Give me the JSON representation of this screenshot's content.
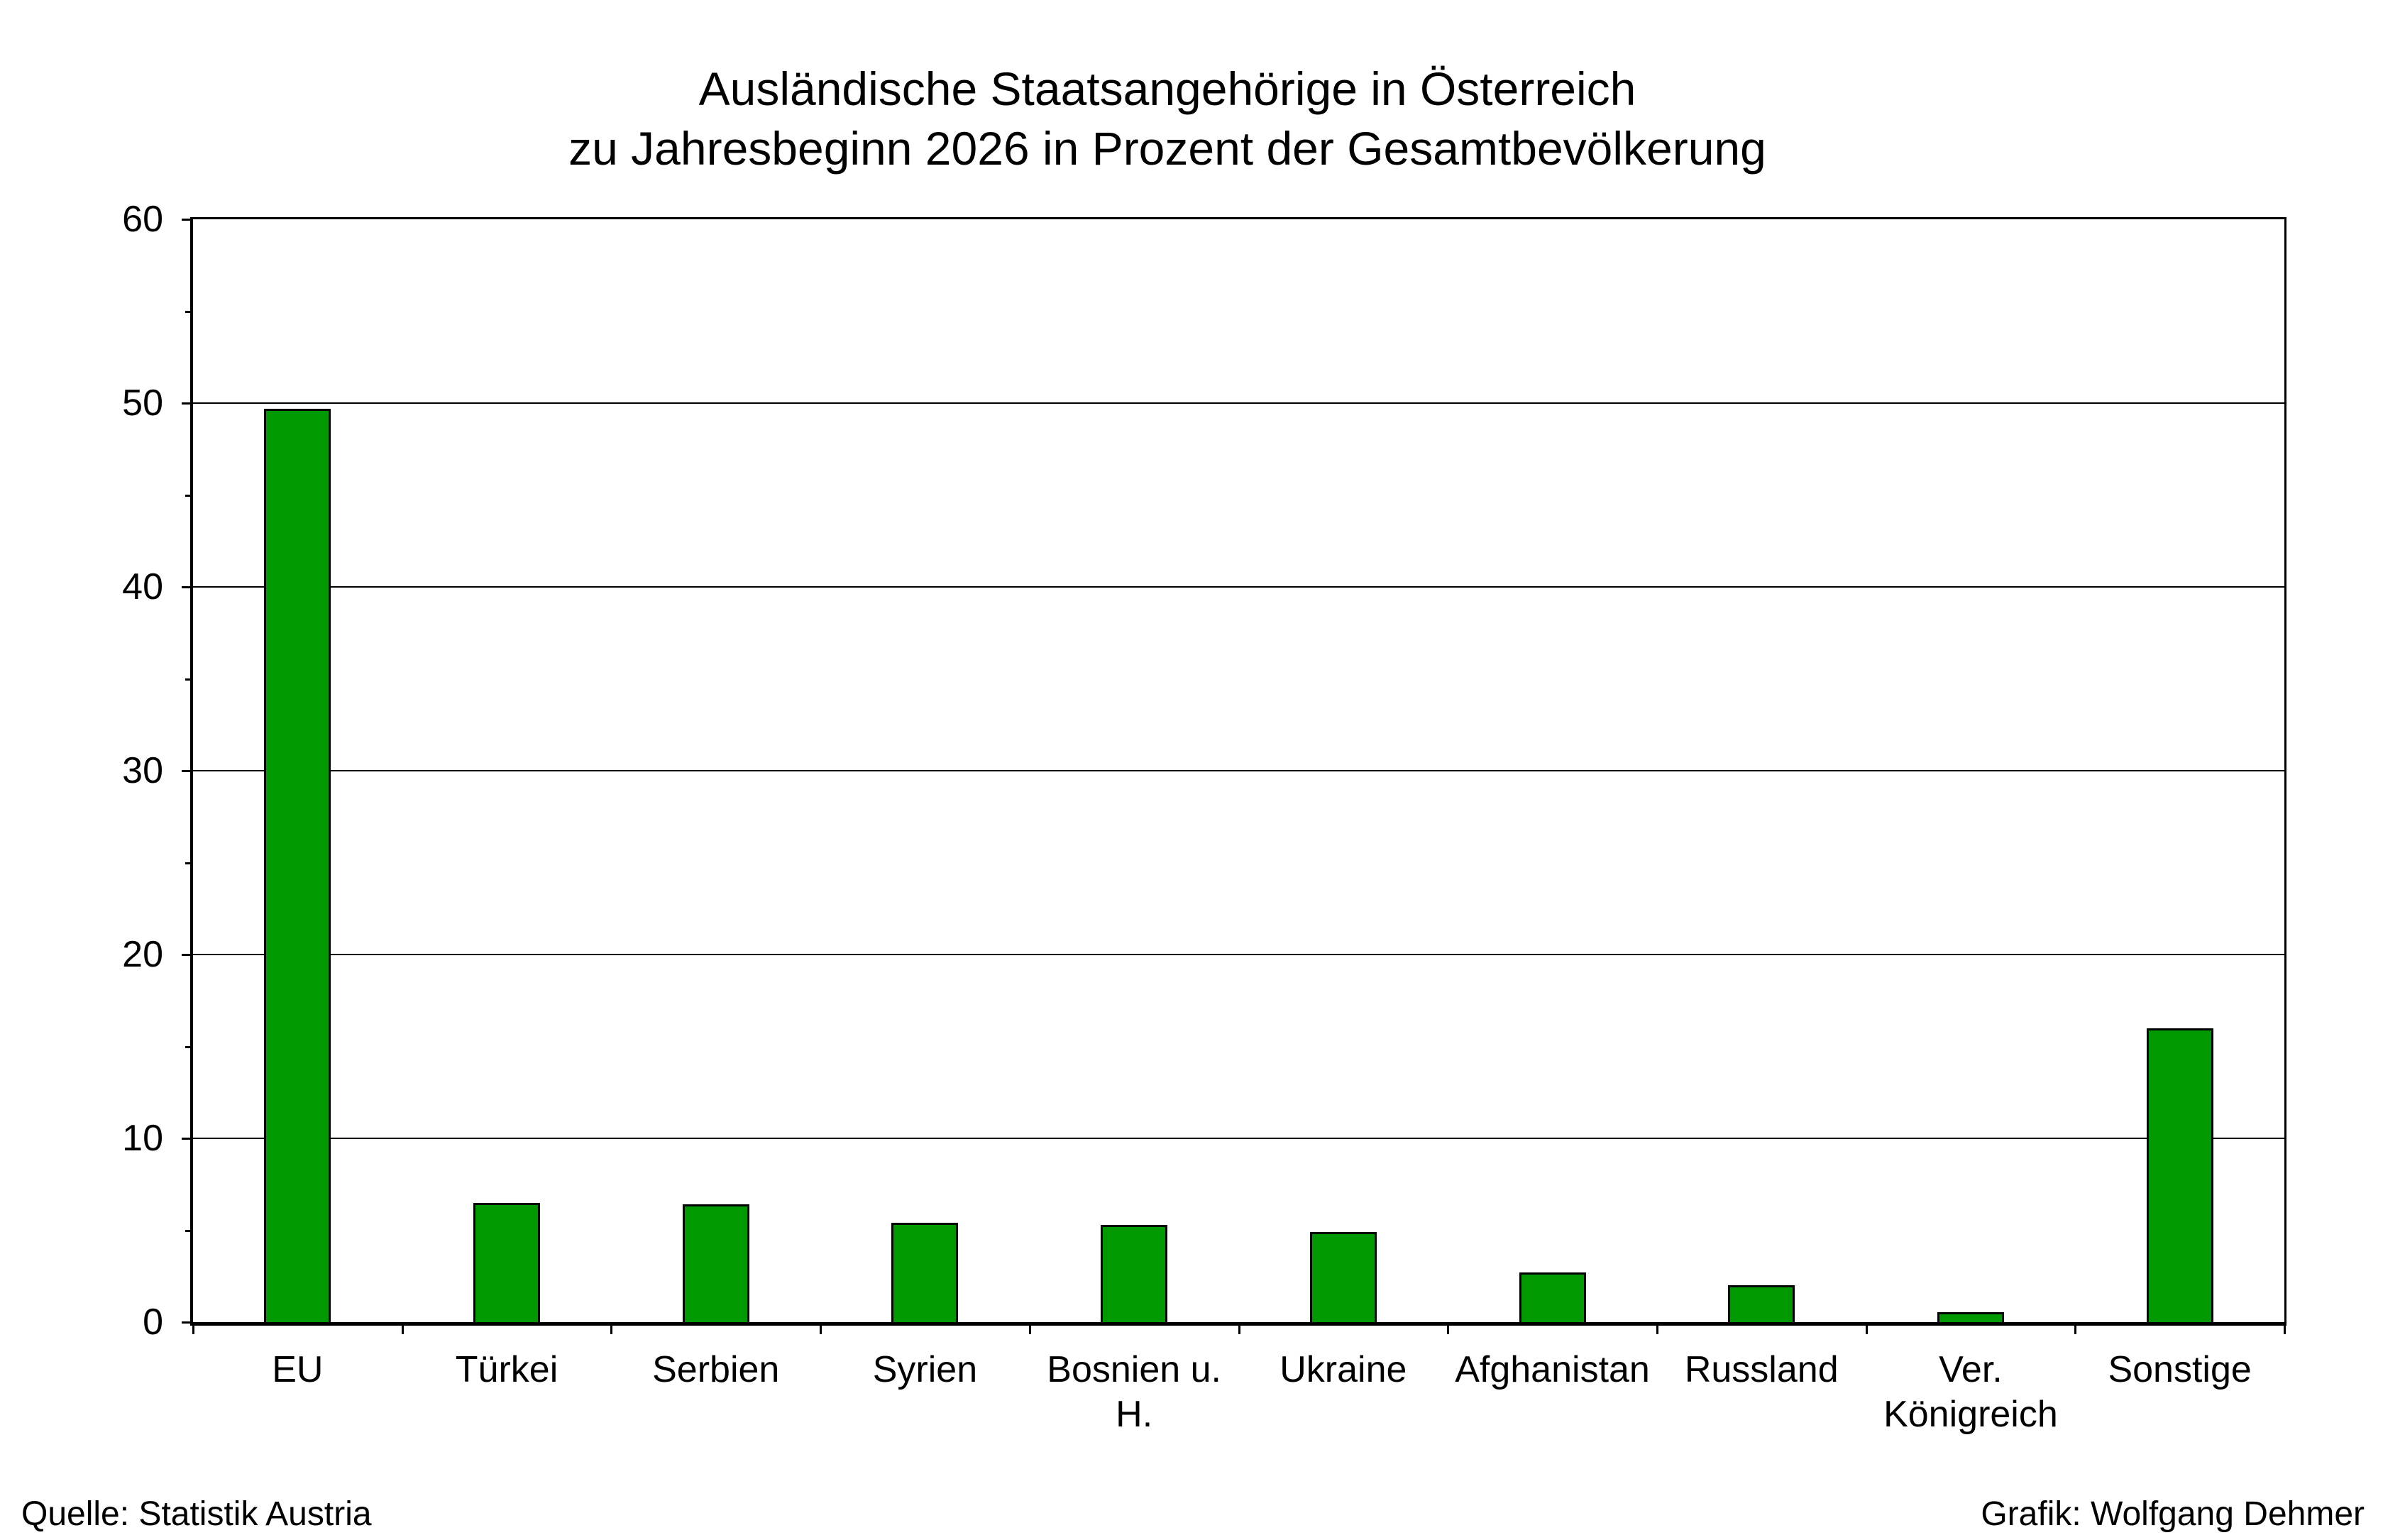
{
  "title": {
    "line1": "Ausländische Staatsangehörige in Österreich",
    "line2": "zu Jahresbeginn 2026 in Prozent der Gesamtbevölkerung"
  },
  "footer": {
    "source": "Quelle: Statistik Austria",
    "credit": "Grafik: Wolfgang Dehmer"
  },
  "chart_data": {
    "type": "bar",
    "title": "Ausländische Staatsangehörige in Österreich zu Jahresbeginn 2026 in Prozent der Gesamtbevölkerung",
    "categories": [
      "EU",
      "Türkei",
      "Serbien",
      "Syrien",
      "Bosnien u.\nH.",
      "Ukraine",
      "Afghanistan",
      "Russland",
      "Ver.\nKönigreich",
      "Sonstige"
    ],
    "values": [
      49.7,
      6.5,
      6.4,
      5.4,
      5.3,
      4.9,
      2.7,
      2.0,
      0.55,
      16.0
    ],
    "xlabel": "",
    "ylabel": "",
    "ylim": [
      0,
      60
    ],
    "yticks": [
      0,
      10,
      20,
      30,
      40,
      50,
      60
    ],
    "minor_yticks": [
      5,
      15,
      25,
      35,
      45,
      55
    ],
    "grid": "major-horizontal",
    "legend": null,
    "bar_color": "#009A00",
    "bar_border_color": "#000000",
    "axis_color": "#000000",
    "background_color": "#FFFFFF"
  }
}
